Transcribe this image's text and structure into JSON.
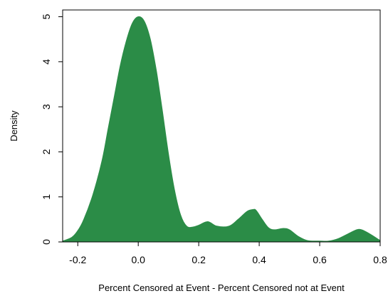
{
  "chart_data": {
    "type": "area",
    "title": "",
    "xlabel": "Percent Censored at Event - Percent Censored not at Event",
    "ylabel": "Density",
    "xlim": [
      -0.25,
      0.8
    ],
    "ylim": [
      0,
      5.15
    ],
    "x_ticks": [
      "-0.2",
      "0.0",
      "0.2",
      "0.4",
      "0.6",
      "0.8"
    ],
    "y_ticks": [
      "0",
      "1",
      "2",
      "3",
      "4",
      "5"
    ],
    "fill_color": "#2b8c47",
    "grid": false,
    "legend": "none",
    "series": [
      {
        "x": [
          -0.25,
          -0.22,
          -0.2,
          -0.18,
          -0.15,
          -0.12,
          -0.1,
          -0.08,
          -0.06,
          -0.04,
          -0.02,
          0.0,
          0.02,
          0.04,
          0.06,
          0.08,
          0.1,
          0.12,
          0.14,
          0.16,
          0.18,
          0.2,
          0.23,
          0.26,
          0.3,
          0.33,
          0.36,
          0.38,
          0.39,
          0.41,
          0.43,
          0.45,
          0.48,
          0.5,
          0.53,
          0.56,
          0.6,
          0.63,
          0.66,
          0.7,
          0.73,
          0.76,
          0.8
        ],
        "y": [
          0.02,
          0.1,
          0.25,
          0.5,
          1.05,
          1.8,
          2.5,
          3.2,
          3.9,
          4.45,
          4.85,
          5.0,
          4.9,
          4.5,
          3.8,
          2.9,
          1.95,
          1.15,
          0.6,
          0.35,
          0.33,
          0.37,
          0.45,
          0.35,
          0.35,
          0.5,
          0.68,
          0.72,
          0.7,
          0.5,
          0.32,
          0.27,
          0.3,
          0.27,
          0.12,
          0.03,
          0.02,
          0.02,
          0.07,
          0.2,
          0.28,
          0.2,
          0.03
        ]
      }
    ]
  }
}
